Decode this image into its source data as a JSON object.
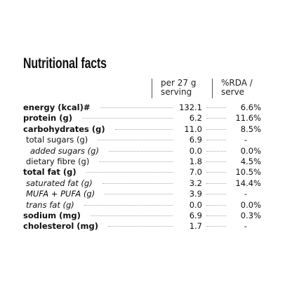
{
  "title": "Nutritional facts",
  "header": {
    "per_serving": [
      "per 27 g",
      "serving"
    ],
    "rda": [
      "%RDA /",
      "serve"
    ]
  },
  "table": {
    "rows": [
      [
        "energy (kcal)#",
        "132.1",
        "6.6%"
      ],
      [
        "protein (g)",
        "6.2",
        "11.6%"
      ],
      [
        "carbohydrates (g)",
        "11.0",
        "8.5%"
      ],
      [
        "total sugars (g)",
        "6.9",
        "-"
      ],
      [
        "added sugars (g)",
        "0.0",
        "0.0%"
      ],
      [
        "dietary fibre (g)",
        "1.8",
        "4.5%"
      ],
      [
        "total fat (g)",
        "7.0",
        "10.5%"
      ],
      [
        "saturated fat (g)",
        "3.2",
        "14.4%"
      ],
      [
        "MUFA + PUFA (g)",
        "3.9",
        "-"
      ],
      [
        "trans fat (g)",
        "0.0",
        "0.0%"
      ],
      [
        "sodium (mg)",
        "6.9",
        "0.3%"
      ],
      [
        "cholesterol (mg)",
        "1.7",
        "-"
      ]
    ]
  }
}
